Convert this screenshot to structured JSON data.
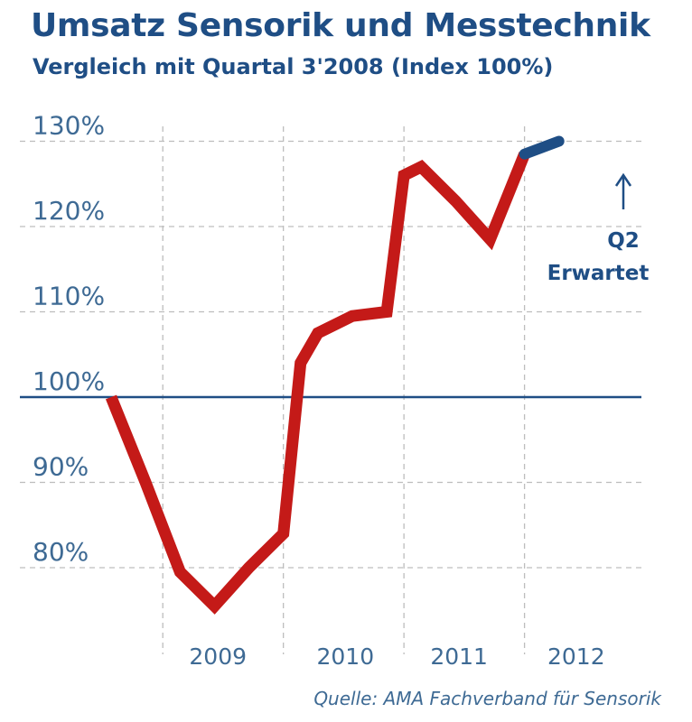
{
  "chart_data": {
    "type": "line",
    "title": "Umsatz Sensorik und Messtechnik",
    "subtitle": "Vergleich mit Quartal  3'2008 (Index 100%)",
    "ylim": [
      70,
      133
    ],
    "yticks": [
      80,
      90,
      100,
      110,
      120,
      130
    ],
    "ytick_labels": [
      "80%",
      "90%",
      "100%",
      "110%",
      "120%",
      "130%"
    ],
    "xlim": [
      0,
      16
    ],
    "xticks": [
      {
        "label": "2009",
        "pos": 3.1
      },
      {
        "label": "2010",
        "pos": 6.8
      },
      {
        "label": "2011",
        "pos": 10.1
      },
      {
        "label": "2012",
        "pos": 13.5
      }
    ],
    "year_dividers": [
      1.5,
      5.0,
      8.5,
      12.0
    ],
    "grid": "dashed",
    "reference_line": 100,
    "series": [
      {
        "color": "#c41a18",
        "x": [
          0,
          1,
          2,
          3,
          4,
          5,
          5.5,
          6,
          7,
          8,
          8.5,
          9,
          10,
          11,
          12
        ],
        "values": [
          100,
          90,
          79.5,
          75.5,
          80,
          84,
          104,
          107.5,
          109.5,
          110,
          126,
          127,
          123,
          118.5,
          128.5
        ]
      },
      {
        "color": "#1f4e85",
        "x": [
          12,
          13
        ],
        "values": [
          128.5,
          130
        ]
      }
    ],
    "annotation": {
      "lines": [
        "Q2",
        "Erwartet"
      ],
      "arrow_up": true
    },
    "source": "Quelle: AMA Fachverband für Sensorik"
  }
}
